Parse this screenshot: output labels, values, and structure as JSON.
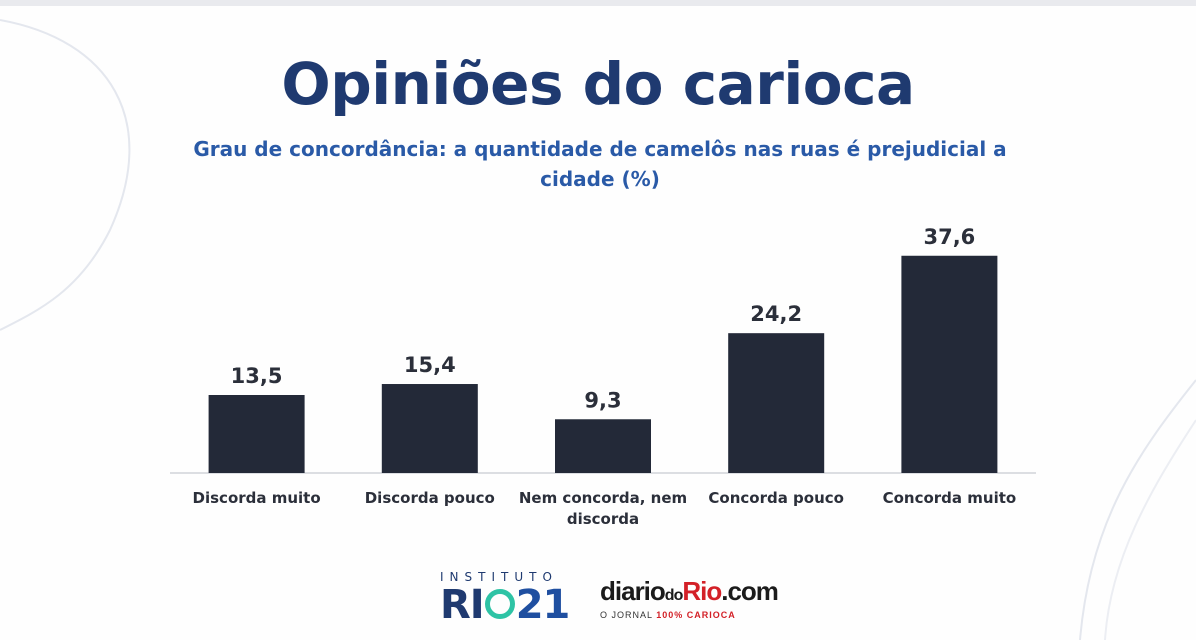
{
  "chart_data": {
    "type": "bar",
    "title": "Opiniões do carioca",
    "subtitle": "Grau de concordância: a quantidade de camelôs nas ruas é prejudicial a cidade (%)",
    "categories": [
      [
        "Discorda muito"
      ],
      [
        "Discorda pouco"
      ],
      [
        "Nem concorda, nem",
        "discorda"
      ],
      [
        "Concorda pouco"
      ],
      [
        "Concorda muito"
      ]
    ],
    "values": [
      13.5,
      15.4,
      9.3,
      24.2,
      37.6
    ],
    "value_labels": [
      "13,5",
      "15,4",
      "9,3",
      "24,2",
      "37,6"
    ],
    "ylim": [
      0,
      45
    ],
    "grid": false,
    "legend": "none",
    "bar_color": "#232938"
  },
  "logos": {
    "institute_line": "INSTITUTO",
    "rio_word": "RI",
    "rio_number": "21",
    "diario_a": "diario",
    "diario_do": "do",
    "diario_rio": "Rio",
    "diario_com": ".com",
    "diario_tagline_a": "O JORNAL ",
    "diario_tagline_b": "100% CARIOCA"
  },
  "colors": {
    "title": "#1f3a70",
    "subtitle": "#2a5aa7",
    "accent_ring": "#2ec3a5",
    "diario_red": "#d32027"
  }
}
